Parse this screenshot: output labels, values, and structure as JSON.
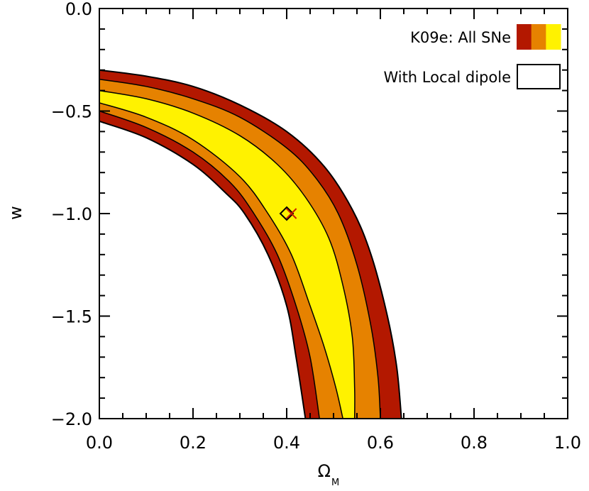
{
  "chart_data": {
    "type": "contour",
    "title": "",
    "xlabel": "Ω",
    "xlabel_subscript": "M",
    "ylabel": "w",
    "xlim": [
      0.0,
      1.0
    ],
    "ylim": [
      -2.0,
      0.0
    ],
    "x_ticks": [
      "0.0",
      "0.2",
      "0.4",
      "0.6",
      "0.8",
      "1.0"
    ],
    "x_tick_values": [
      0.0,
      0.2,
      0.4,
      0.6,
      0.8,
      1.0
    ],
    "x_minor_step": 0.05,
    "y_ticks": [
      "0.0",
      "−0.5",
      "−1.0",
      "−1.5",
      "−2.0"
    ],
    "y_tick_values": [
      0.0,
      -0.5,
      -1.0,
      -1.5,
      -2.0
    ],
    "y_minor_step": 0.1,
    "grid": false,
    "legend_placement": "top-right",
    "legend": [
      {
        "label": "K09e: All SNe",
        "colors": [
          "#b31800",
          "#e68200",
          "#fff200"
        ]
      },
      {
        "label": "With Local dipole",
        "colors": [
          "#ffffff"
        ]
      }
    ],
    "colors": {
      "level3": "#b31800",
      "level2": "#e68200",
      "level1": "#fff200",
      "line": "#000000",
      "marker_x": "#cc2200"
    },
    "regions": [
      {
        "level": "3-sigma",
        "color": "#b31800",
        "upper": [
          [
            0,
            -0.3
          ],
          [
            0.1,
            -0.33
          ],
          [
            0.2,
            -0.38
          ],
          [
            0.3,
            -0.47
          ],
          [
            0.4,
            -0.6
          ],
          [
            0.48,
            -0.77
          ],
          [
            0.54,
            -0.98
          ],
          [
            0.58,
            -1.2
          ],
          [
            0.615,
            -1.5
          ],
          [
            0.635,
            -1.75
          ],
          [
            0.645,
            -2.0
          ]
        ],
        "lower": [
          [
            0,
            -0.55
          ],
          [
            0.1,
            -0.63
          ],
          [
            0.2,
            -0.76
          ],
          [
            0.27,
            -0.9
          ],
          [
            0.31,
            -1.0
          ],
          [
            0.36,
            -1.2
          ],
          [
            0.4,
            -1.45
          ],
          [
            0.42,
            -1.7
          ],
          [
            0.44,
            -2.0
          ]
        ]
      },
      {
        "level": "2-sigma",
        "color": "#e68200",
        "upper": [
          [
            0,
            -0.345
          ],
          [
            0.1,
            -0.38
          ],
          [
            0.2,
            -0.44
          ],
          [
            0.3,
            -0.53
          ],
          [
            0.4,
            -0.68
          ],
          [
            0.46,
            -0.82
          ],
          [
            0.51,
            -1.0
          ],
          [
            0.55,
            -1.25
          ],
          [
            0.58,
            -1.55
          ],
          [
            0.595,
            -1.8
          ],
          [
            0.6,
            -2.0
          ]
        ],
        "lower": [
          [
            0,
            -0.5
          ],
          [
            0.1,
            -0.58
          ],
          [
            0.2,
            -0.7
          ],
          [
            0.28,
            -0.85
          ],
          [
            0.33,
            -1.0
          ],
          [
            0.38,
            -1.2
          ],
          [
            0.42,
            -1.45
          ],
          [
            0.45,
            -1.7
          ],
          [
            0.47,
            -2.0
          ]
        ]
      },
      {
        "level": "1-sigma",
        "color": "#fff200",
        "upper": [
          [
            0,
            -0.4
          ],
          [
            0.1,
            -0.44
          ],
          [
            0.2,
            -0.51
          ],
          [
            0.3,
            -0.62
          ],
          [
            0.38,
            -0.76
          ],
          [
            0.44,
            -0.92
          ],
          [
            0.49,
            -1.12
          ],
          [
            0.52,
            -1.35
          ],
          [
            0.54,
            -1.6
          ],
          [
            0.545,
            -1.85
          ],
          [
            0.545,
            -2.0
          ]
        ],
        "lower": [
          [
            0,
            -0.46
          ],
          [
            0.1,
            -0.53
          ],
          [
            0.2,
            -0.64
          ],
          [
            0.3,
            -0.82
          ],
          [
            0.36,
            -1.0
          ],
          [
            0.41,
            -1.2
          ],
          [
            0.45,
            -1.45
          ],
          [
            0.48,
            -1.65
          ],
          [
            0.505,
            -1.85
          ],
          [
            0.52,
            -2.0
          ]
        ]
      }
    ],
    "markers": [
      {
        "shape": "diamond",
        "color": "#000000",
        "x": 0.4,
        "y": -1.0
      },
      {
        "shape": "x",
        "color": "#cc2200",
        "x": 0.41,
        "y": -1.0
      }
    ]
  }
}
